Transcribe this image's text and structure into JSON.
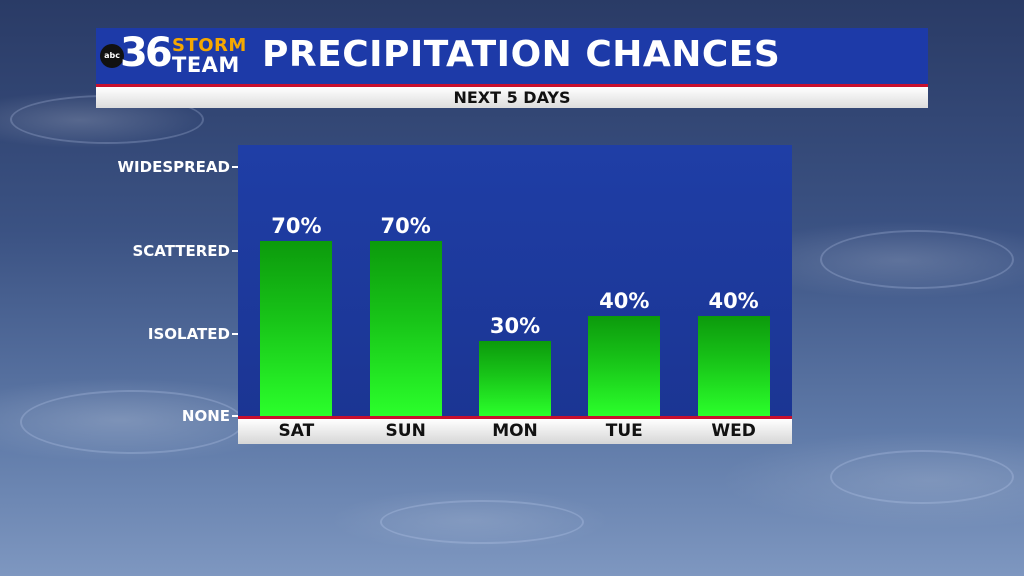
{
  "header": {
    "logo": {
      "network": "abc",
      "number": "36",
      "line1": "STORM",
      "line2": "TEAM"
    },
    "title": "PRECIPITATION CHANCES",
    "subtitle": "NEXT 5 DAYS"
  },
  "colors": {
    "header_blue": "#1d3aa8",
    "plot_blue": "#1f3ea6",
    "bar_green_top": "#0c9a0c",
    "bar_green_bottom": "#2bff2b",
    "accent_red": "#c8102e",
    "logo_orange": "#f5a800"
  },
  "chart_data": {
    "type": "bar",
    "title": "PRECIPITATION CHANCES",
    "subtitle": "NEXT 5 DAYS",
    "categories": [
      "SAT",
      "SUN",
      "MON",
      "TUE",
      "WED"
    ],
    "values": [
      70,
      70,
      30,
      40,
      40
    ],
    "value_labels": [
      "70%",
      "70%",
      "30%",
      "40%",
      "40%"
    ],
    "unit": "%",
    "ylim": [
      0,
      100
    ],
    "y_ticks": [
      {
        "value": 0,
        "label": "NONE"
      },
      {
        "value": 33,
        "label": "ISOLATED"
      },
      {
        "value": 66,
        "label": "SCATTERED"
      },
      {
        "value": 100,
        "label": "WIDESPREAD"
      }
    ],
    "grid": false,
    "legend": "none"
  }
}
